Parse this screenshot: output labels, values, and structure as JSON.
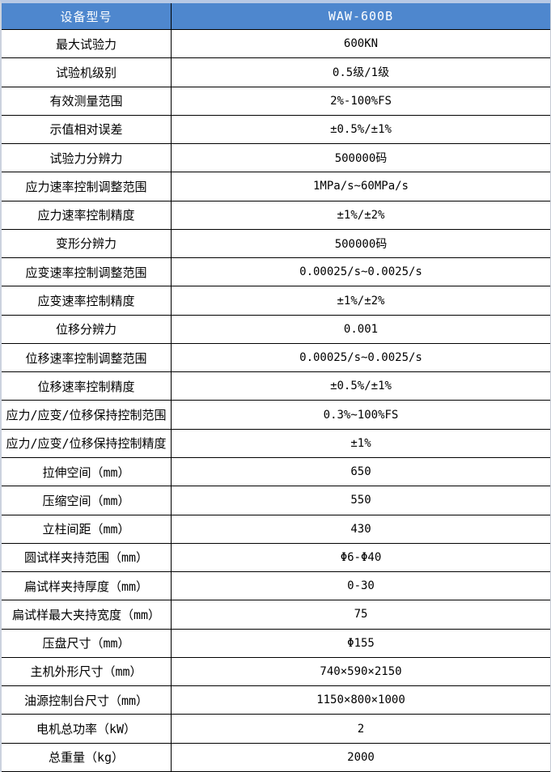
{
  "table": {
    "header": {
      "label": "设备型号",
      "value": "WAW-600B"
    },
    "rows": [
      {
        "label": "最大试验力",
        "value": "600KN"
      },
      {
        "label": "试验机级别",
        "value": "0.5级/1级"
      },
      {
        "label": "有效测量范围",
        "value": "2%-100%FS"
      },
      {
        "label": "示值相对误差",
        "value": "±0.5%/±1%"
      },
      {
        "label": "试验力分辨力",
        "value": "500000码"
      },
      {
        "label": "应力速率控制调整范围",
        "value": "1MPa/s~60MPa/s"
      },
      {
        "label": "应力速率控制精度",
        "value": "±1%/±2%"
      },
      {
        "label": "变形分辨力",
        "value": "500000码"
      },
      {
        "label": "应变速率控制调整范围",
        "value": "0.00025/s~0.0025/s"
      },
      {
        "label": "应变速率控制精度",
        "value": "±1%/±2%"
      },
      {
        "label": "位移分辨力",
        "value": "0.001"
      },
      {
        "label": "位移速率控制调整范围",
        "value": "0.00025/s~0.0025/s"
      },
      {
        "label": "位移速率控制精度",
        "value": "±0.5%/±1%"
      },
      {
        "label": "应力/应变/位移保持控制范围",
        "value": "0.3%~100%FS"
      },
      {
        "label": "应力/应变/位移保持控制精度",
        "value": "±1%"
      },
      {
        "label": "拉伸空间（mm）",
        "value": "650"
      },
      {
        "label": "压缩空间（mm）",
        "value": "550"
      },
      {
        "label": "立柱间距（mm）",
        "value": "430"
      },
      {
        "label": "圆试样夹持范围（mm）",
        "value": "Φ6-Φ40"
      },
      {
        "label": "扁试样夹持厚度（mm）",
        "value": "0-30"
      },
      {
        "label": "扁试样最大夹持宽度（mm）",
        "value": "75"
      },
      {
        "label": "压盘尺寸（mm）",
        "value": "Φ155"
      },
      {
        "label": "主机外形尺寸（mm）",
        "value": "740×590×2150"
      },
      {
        "label": "油源控制台尺寸（mm）",
        "value": "1150×800×1000"
      },
      {
        "label": "电机总功率（kW）",
        "value": "2"
      },
      {
        "label": "总重量（kg）",
        "value": "2000"
      }
    ]
  },
  "colors": {
    "header_bg": "#4E87CE",
    "header_text": "#FFFFFF",
    "grid_line": "#000000",
    "top_border": "#B7C9E5",
    "row_bg": "#FFFFFF"
  }
}
